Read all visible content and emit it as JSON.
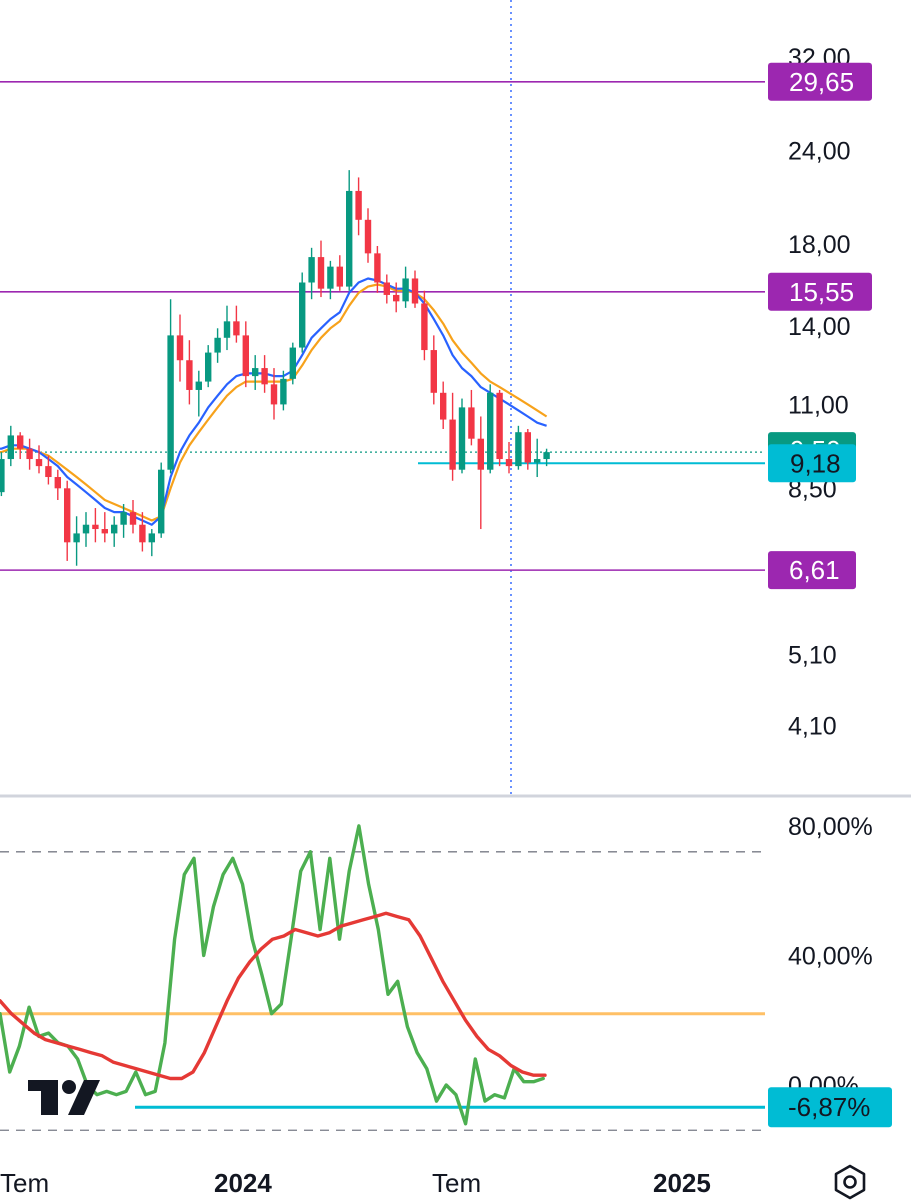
{
  "chart_data": [
    {
      "type": "candlestick",
      "scale": "log",
      "ylim": [
        3.85,
        33.2
      ],
      "y_ticks": [
        "32,00",
        "24,00",
        "18,00",
        "14,00",
        "11,00",
        "8,50",
        "5,10",
        "4,10"
      ],
      "y_tick_values": [
        32,
        24,
        18,
        14,
        11,
        8.5,
        5.1,
        4.1
      ],
      "x_labels": [
        "Tem",
        "2024",
        "Tem",
        "2025"
      ],
      "horizontal_levels": [
        {
          "value": 29.65,
          "label": "29,65"
        },
        {
          "value": 15.55,
          "label": "15,55"
        },
        {
          "value": 6.61,
          "label": "6,61"
        }
      ],
      "support_line": {
        "value": 9.18,
        "label": "9,18"
      },
      "last_price": {
        "value": 9.5,
        "label": "9,50"
      },
      "candles": [
        [
          8.0,
          8.6,
          7.9,
          8.4
        ],
        [
          8.4,
          9.5,
          8.3,
          9.3
        ],
        [
          9.3,
          10.3,
          9.1,
          10.0
        ],
        [
          10.0,
          10.1,
          9.3,
          9.6
        ],
        [
          9.6,
          9.9,
          9.0,
          9.3
        ],
        [
          9.3,
          9.7,
          8.9,
          9.1
        ],
        [
          9.1,
          9.4,
          8.6,
          8.8
        ],
        [
          8.8,
          9.0,
          8.2,
          8.5
        ],
        [
          8.5,
          8.7,
          6.8,
          7.2
        ],
        [
          7.2,
          7.8,
          6.7,
          7.4
        ],
        [
          7.4,
          7.9,
          7.1,
          7.6
        ],
        [
          7.6,
          8.0,
          7.2,
          7.5
        ],
        [
          7.5,
          7.9,
          7.2,
          7.4
        ],
        [
          7.4,
          7.8,
          7.1,
          7.6
        ],
        [
          7.6,
          8.1,
          7.3,
          7.9
        ],
        [
          7.9,
          8.2,
          7.4,
          7.6
        ],
        [
          7.6,
          7.9,
          7.0,
          7.2
        ],
        [
          7.2,
          7.5,
          6.9,
          7.4
        ],
        [
          7.4,
          9.2,
          7.3,
          9.0
        ],
        [
          9.0,
          15.2,
          8.9,
          13.6
        ],
        [
          13.6,
          14.5,
          11.8,
          12.6
        ],
        [
          12.6,
          13.4,
          11.0,
          11.5
        ],
        [
          11.5,
          12.2,
          10.6,
          11.8
        ],
        [
          11.8,
          13.2,
          11.6,
          12.9
        ],
        [
          12.9,
          13.9,
          12.5,
          13.5
        ],
        [
          13.5,
          14.9,
          13.0,
          14.2
        ],
        [
          14.2,
          14.9,
          13.3,
          13.6
        ],
        [
          13.6,
          14.2,
          11.6,
          12.0
        ],
        [
          12.0,
          12.8,
          11.5,
          12.3
        ],
        [
          12.3,
          12.8,
          11.4,
          11.7
        ],
        [
          11.7,
          12.3,
          10.5,
          11.0
        ],
        [
          11.0,
          12.2,
          10.8,
          11.9
        ],
        [
          11.9,
          13.3,
          11.7,
          13.1
        ],
        [
          13.1,
          16.5,
          12.9,
          16.0
        ],
        [
          16.0,
          17.8,
          15.2,
          17.3
        ],
        [
          17.3,
          18.2,
          15.3,
          15.7
        ],
        [
          15.7,
          17.1,
          15.2,
          16.8
        ],
        [
          16.8,
          17.4,
          15.6,
          15.8
        ],
        [
          15.8,
          22.6,
          15.6,
          21.2
        ],
        [
          21.2,
          22.1,
          18.5,
          19.4
        ],
        [
          19.4,
          20.1,
          17.0,
          17.5
        ],
        [
          17.5,
          17.9,
          15.5,
          16.0
        ],
        [
          16.0,
          16.4,
          15.0,
          15.4
        ],
        [
          15.4,
          16.0,
          14.6,
          15.1
        ],
        [
          15.1,
          16.8,
          14.8,
          16.2
        ],
        [
          16.2,
          16.6,
          14.8,
          15.0
        ],
        [
          15.0,
          15.6,
          12.6,
          13.0
        ],
        [
          13.0,
          13.6,
          11.0,
          11.4
        ],
        [
          11.4,
          11.8,
          10.2,
          10.5
        ],
        [
          10.5,
          11.4,
          8.7,
          9.0
        ],
        [
          9.0,
          11.2,
          8.9,
          10.9
        ],
        [
          10.9,
          11.5,
          9.7,
          9.9
        ],
        [
          9.9,
          10.6,
          7.5,
          9.0
        ],
        [
          9.0,
          11.7,
          8.9,
          11.4
        ],
        [
          11.4,
          11.5,
          9.1,
          9.3
        ],
        [
          9.3,
          9.8,
          8.9,
          9.1
        ],
        [
          9.1,
          10.3,
          9.0,
          10.1
        ],
        [
          10.1,
          10.2,
          9.0,
          9.2
        ],
        [
          9.2,
          9.9,
          8.8,
          9.3
        ],
        [
          9.3,
          9.6,
          9.1,
          9.5
        ]
      ],
      "ma_fast": [
        9.6,
        9.6,
        9.7,
        9.7,
        9.6,
        9.5,
        9.3,
        9.1,
        8.8,
        8.6,
        8.4,
        8.2,
        8.0,
        7.9,
        7.9,
        7.8,
        7.7,
        7.6,
        7.8,
        8.8,
        9.5,
        10.0,
        10.4,
        10.9,
        11.3,
        11.7,
        12.0,
        12.1,
        12.1,
        12.1,
        12.0,
        12.0,
        12.2,
        12.8,
        13.5,
        13.9,
        14.3,
        14.6,
        15.5,
        16.0,
        16.2,
        16.1,
        15.9,
        15.7,
        15.7,
        15.5,
        15.0,
        14.3,
        13.6,
        12.8,
        12.3,
        12.0,
        11.6,
        11.4,
        11.2,
        11.0,
        10.8,
        10.6,
        10.4,
        10.3
      ],
      "ma_slow": [
        9.5,
        9.5,
        9.6,
        9.6,
        9.6,
        9.5,
        9.4,
        9.2,
        9.0,
        8.8,
        8.6,
        8.4,
        8.2,
        8.1,
        8.0,
        7.9,
        7.8,
        7.7,
        7.8,
        8.5,
        9.2,
        9.7,
        10.1,
        10.5,
        10.9,
        11.3,
        11.6,
        11.8,
        11.8,
        11.8,
        11.8,
        11.8,
        11.9,
        12.4,
        13.0,
        13.5,
        13.9,
        14.2,
        14.9,
        15.5,
        15.8,
        15.9,
        15.8,
        15.6,
        15.6,
        15.5,
        15.2,
        14.7,
        14.1,
        13.4,
        12.9,
        12.5,
        12.1,
        11.8,
        11.6,
        11.4,
        11.2,
        11.0,
        10.8,
        10.6
      ]
    },
    {
      "type": "line",
      "ylim": [
        -17,
        88
      ],
      "y_ticks": [
        "80,00%",
        "40,00%",
        "0,00%"
      ],
      "y_tick_values": [
        80,
        40,
        0
      ],
      "dashed_levels": [
        72,
        -14
      ],
      "orange_level": 22,
      "support_line": {
        "value": -6.87,
        "label": "-6,87%"
      },
      "series": [
        {
          "color": "#4caf50",
          "values": [
            22,
            4,
            12,
            24,
            15,
            16,
            13,
            12,
            8,
            0,
            -3,
            -2,
            -3,
            -2,
            4,
            -3,
            -2,
            13,
            45,
            65,
            70,
            40,
            55,
            65,
            70,
            62,
            45,
            34,
            22,
            25,
            45,
            66,
            72,
            48,
            70,
            45,
            66,
            80,
            62,
            48,
            28,
            32,
            18,
            10,
            5,
            -5,
            0,
            -3,
            -12,
            8,
            -5,
            -3,
            -4,
            5,
            1,
            1,
            2
          ]
        },
        {
          "color": "#e53935",
          "values": [
            26,
            22,
            19,
            16,
            14,
            13,
            12,
            11,
            10,
            9,
            7,
            6,
            5,
            4,
            3,
            2,
            2,
            4,
            10,
            18,
            26,
            33,
            38,
            42,
            45,
            46,
            48,
            47,
            46,
            47,
            49,
            50,
            51,
            52,
            53,
            52,
            51,
            46,
            39,
            32,
            26,
            20,
            15,
            11,
            9,
            6,
            4,
            3,
            3
          ]
        }
      ]
    }
  ],
  "colors": {
    "up": "#089981",
    "down": "#f23645",
    "ma_fast": "#2962ff",
    "ma_slow": "#f7a21b",
    "level": "#9c27b0",
    "support": "#00bcd4",
    "last_price": "#089981",
    "osc_green": "#4caf50",
    "osc_red": "#e53935",
    "osc_orange": "#ffc066",
    "text": "#131722"
  },
  "icons": {
    "logo": "tradingview-logo-icon",
    "settings": "settings-hexagon-icon"
  }
}
